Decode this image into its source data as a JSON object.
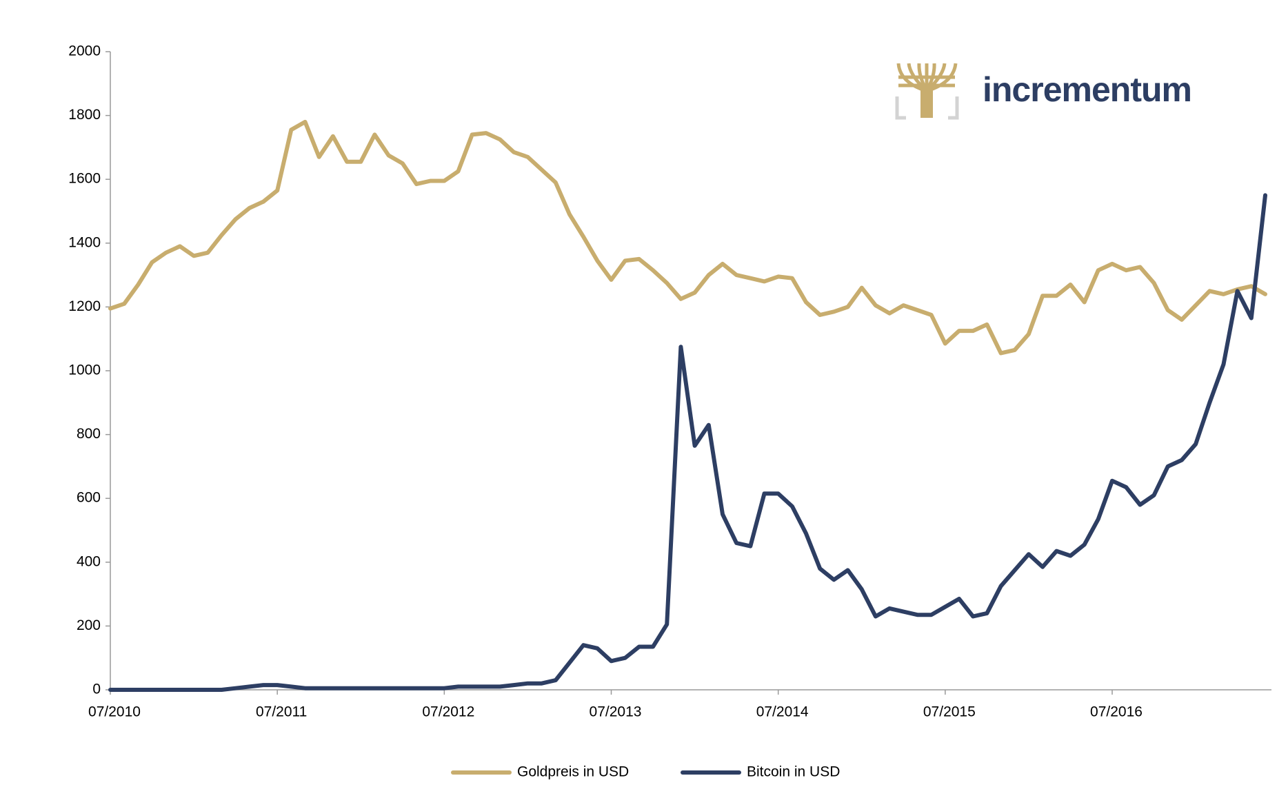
{
  "brand": {
    "name": "incrementum"
  },
  "chart_data": {
    "type": "line",
    "categories": [
      "07/2010",
      null,
      null,
      null,
      null,
      null,
      null,
      null,
      null,
      null,
      null,
      null,
      "07/2011",
      null,
      null,
      null,
      null,
      null,
      null,
      null,
      null,
      null,
      null,
      null,
      "07/2012",
      null,
      null,
      null,
      null,
      null,
      null,
      null,
      null,
      null,
      null,
      null,
      "07/2013",
      null,
      null,
      null,
      null,
      null,
      null,
      null,
      null,
      null,
      null,
      null,
      "07/2014",
      null,
      null,
      null,
      null,
      null,
      null,
      null,
      null,
      null,
      null,
      null,
      "07/2015",
      null,
      null,
      null,
      null,
      null,
      null,
      null,
      null,
      null,
      null,
      null,
      "07/2016",
      null,
      null,
      null,
      null,
      null,
      null,
      null,
      null,
      null,
      null,
      null
    ],
    "series": [
      {
        "name": "Goldpreis in USD",
        "color": "#c8ad6e",
        "values": [
          1195,
          1210,
          1270,
          1340,
          1370,
          1390,
          1360,
          1370,
          1425,
          1475,
          1510,
          1530,
          1565,
          1755,
          1780,
          1670,
          1735,
          1655,
          1655,
          1740,
          1675,
          1650,
          1585,
          1595,
          1595,
          1625,
          1740,
          1745,
          1725,
          1685,
          1670,
          1630,
          1590,
          1490,
          1420,
          1345,
          1285,
          1345,
          1350,
          1315,
          1275,
          1225,
          1245,
          1300,
          1335,
          1300,
          1290,
          1280,
          1295,
          1290,
          1215,
          1175,
          1185,
          1200,
          1260,
          1205,
          1180,
          1205,
          1190,
          1175,
          1085,
          1125,
          1125,
          1145,
          1055,
          1065,
          1115,
          1235,
          1235,
          1270,
          1215,
          1315,
          1335,
          1315,
          1325,
          1275,
          1190,
          1160,
          1205,
          1250,
          1240,
          1255,
          1265,
          1240
        ]
      },
      {
        "name": "Bitcoin in USD",
        "color": "#2d3e63",
        "values": [
          0,
          0,
          0,
          0,
          0,
          0,
          0,
          0,
          0,
          5,
          10,
          15,
          15,
          10,
          5,
          5,
          5,
          5,
          5,
          5,
          5,
          5,
          5,
          5,
          5,
          10,
          10,
          10,
          10,
          15,
          20,
          20,
          30,
          85,
          140,
          130,
          90,
          100,
          135,
          135,
          205,
          1075,
          765,
          830,
          550,
          460,
          450,
          615,
          615,
          575,
          490,
          380,
          345,
          375,
          315,
          230,
          255,
          245,
          235,
          235,
          260,
          285,
          230,
          240,
          325,
          375,
          425,
          385,
          435,
          420,
          455,
          535,
          655,
          635,
          580,
          610,
          700,
          720,
          770,
          900,
          1020,
          1250,
          1165,
          1550
        ]
      }
    ],
    "ylim": [
      0,
      2000
    ],
    "yticks": [
      0,
      200,
      400,
      600,
      800,
      1000,
      1200,
      1400,
      1600,
      1800,
      2000
    ],
    "legend": "bottom"
  }
}
